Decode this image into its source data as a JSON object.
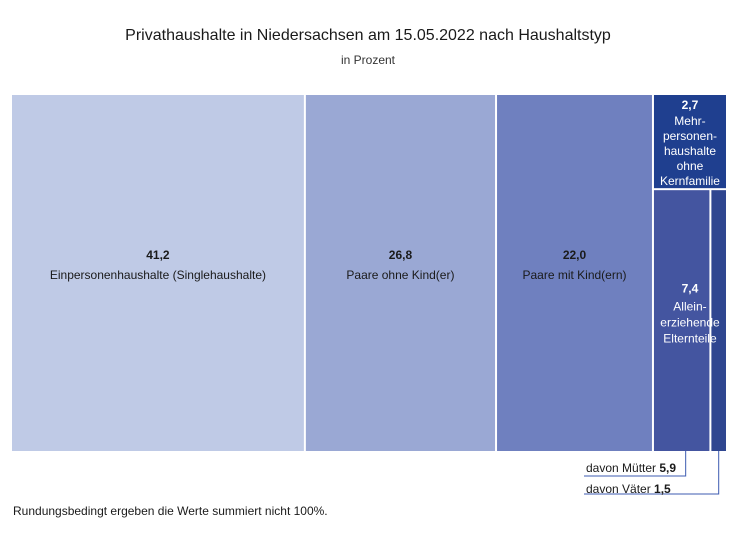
{
  "chart_data": {
    "type": "treemap",
    "title": "Privathaushalte in Niedersachsen am 15.05.2022 nach Haushaltstyp",
    "subtitle": "in Prozent",
    "segments": [
      {
        "value": "41,2",
        "label": "Einpersonenhaushalte (Singlehaushalte)",
        "number": 41.2,
        "color": "#bfcae6"
      },
      {
        "value": "26,8",
        "label": "Paare ohne Kind(er)",
        "number": 26.8,
        "color": "#9aa8d4"
      },
      {
        "value": "22,0",
        "label": "Paare mit Kind(ern)",
        "number": 22.0,
        "color": "#6f80bf"
      },
      {
        "value": "2,7",
        "label_lines": [
          "Mehr-",
          "personen-",
          "haushalte",
          "ohne",
          "Kernfamilie"
        ],
        "number": 2.7,
        "color": "#1f3f8f"
      },
      {
        "value": "7,4",
        "label_lines": [
          "Allein-",
          "erziehende",
          "Elternteile"
        ],
        "number": 7.4,
        "color": "#4455a0",
        "sub": [
          {
            "label": "davon Mütter",
            "value": "5,9",
            "number": 5.9
          },
          {
            "label": "davon Väter",
            "value": "1,5",
            "number": 1.5,
            "color": "#2f4690"
          }
        ]
      }
    ]
  },
  "footnote": "Rundungsbedingt ergeben die Werte summiert nicht 100%."
}
